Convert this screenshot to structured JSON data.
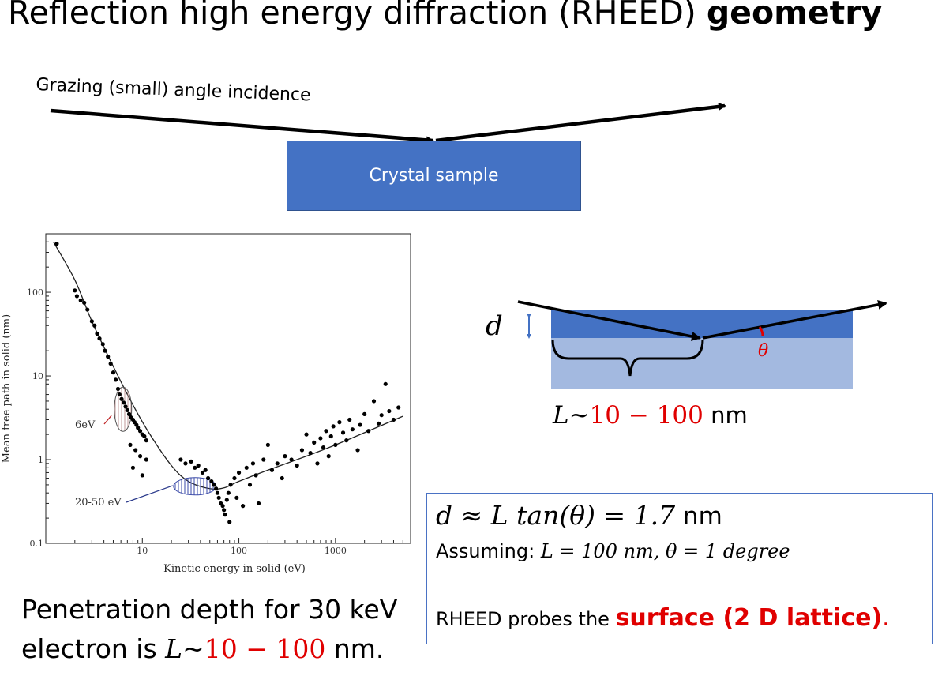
{
  "title": {
    "main": "Reflection high energy diffraction (RHEED) ",
    "emph": "geometry"
  },
  "incidence_label": "Grazing (small) angle incidence",
  "sample_label": "Crystal sample",
  "depth_diagram": {
    "d_symbol": "d",
    "theta_symbol": "θ",
    "L_prefix": "L~",
    "L_range": "10 − 100",
    "L_unit": " nm"
  },
  "equation_box": {
    "line1_math": "d ≈ L tan(θ) = 1.7",
    "line1_unit": " nm",
    "line2_prefix": "Assuming: ",
    "line2_math": "L = 100 nm, θ = 1 degree",
    "line3_prefix": "RHEED probes the ",
    "line3_highlight": "surface (2 D lattice)",
    "line3_suffix": "."
  },
  "penetration": {
    "line1": "Penetration depth for 30 keV",
    "line2_prefix": "electron is ",
    "line2_L": "L~",
    "line2_range": "10 − 100",
    "line2_suffix": " nm."
  },
  "chart_data": {
    "type": "scatter",
    "xlabel": "Kinetic energy in solid (eV)",
    "ylabel": "Mean free path in solid (nm)",
    "x_scale": "log",
    "y_scale": "log",
    "xlim": [
      1,
      6000
    ],
    "ylim": [
      0.1,
      500
    ],
    "x_ticks": [
      {
        "value": 10,
        "label": "10"
      },
      {
        "value": 100,
        "label": "100"
      },
      {
        "value": 1000,
        "label": "1000"
      }
    ],
    "y_ticks": [
      {
        "value": 0.1,
        "label": "0.1"
      },
      {
        "value": 1,
        "label": "1"
      },
      {
        "value": 10,
        "label": "10"
      },
      {
        "value": 100,
        "label": "100"
      }
    ],
    "annotations": [
      {
        "text": "6eV",
        "color": "#c0282a",
        "x": 6,
        "y": 4
      },
      {
        "text": "20-50 eV",
        "color": "#2b3a8c",
        "x": 35,
        "y": 0.5
      }
    ],
    "curve": [
      {
        "x": 1.2,
        "y": 400
      },
      {
        "x": 2,
        "y": 140
      },
      {
        "x": 3,
        "y": 45
      },
      {
        "x": 5,
        "y": 13
      },
      {
        "x": 8,
        "y": 4.5
      },
      {
        "x": 12,
        "y": 2
      },
      {
        "x": 20,
        "y": 0.85
      },
      {
        "x": 30,
        "y": 0.55
      },
      {
        "x": 50,
        "y": 0.45
      },
      {
        "x": 70,
        "y": 0.46
      },
      {
        "x": 100,
        "y": 0.55
      },
      {
        "x": 200,
        "y": 0.75
      },
      {
        "x": 500,
        "y": 1.1
      },
      {
        "x": 1000,
        "y": 1.5
      },
      {
        "x": 2000,
        "y": 2.1
      },
      {
        "x": 5000,
        "y": 3.3
      }
    ],
    "points": [
      {
        "x": 1.3,
        "y": 380
      },
      {
        "x": 2.0,
        "y": 105
      },
      {
        "x": 2.1,
        "y": 90
      },
      {
        "x": 2.3,
        "y": 80
      },
      {
        "x": 2.5,
        "y": 75
      },
      {
        "x": 2.7,
        "y": 62
      },
      {
        "x": 3.0,
        "y": 45
      },
      {
        "x": 3.2,
        "y": 40
      },
      {
        "x": 3.4,
        "y": 32
      },
      {
        "x": 3.6,
        "y": 28
      },
      {
        "x": 3.9,
        "y": 24
      },
      {
        "x": 4.1,
        "y": 20
      },
      {
        "x": 4.4,
        "y": 17
      },
      {
        "x": 4.7,
        "y": 14
      },
      {
        "x": 5.0,
        "y": 11
      },
      {
        "x": 5.3,
        "y": 9
      },
      {
        "x": 5.6,
        "y": 7
      },
      {
        "x": 5.8,
        "y": 6
      },
      {
        "x": 6.1,
        "y": 5.3
      },
      {
        "x": 6.4,
        "y": 4.8
      },
      {
        "x": 6.7,
        "y": 4.3
      },
      {
        "x": 7.0,
        "y": 3.9
      },
      {
        "x": 7.3,
        "y": 3.5
      },
      {
        "x": 7.6,
        "y": 3.2
      },
      {
        "x": 8.0,
        "y": 3.0
      },
      {
        "x": 8.3,
        "y": 2.8
      },
      {
        "x": 8.7,
        "y": 2.6
      },
      {
        "x": 9.0,
        "y": 2.4
      },
      {
        "x": 9.5,
        "y": 2.2
      },
      {
        "x": 10,
        "y": 2.0
      },
      {
        "x": 10.5,
        "y": 1.9
      },
      {
        "x": 11,
        "y": 1.7
      },
      {
        "x": 7.5,
        "y": 1.5
      },
      {
        "x": 8.5,
        "y": 1.3
      },
      {
        "x": 9.5,
        "y": 1.1
      },
      {
        "x": 11,
        "y": 1.0
      },
      {
        "x": 8.0,
        "y": 0.8
      },
      {
        "x": 10,
        "y": 0.65
      },
      {
        "x": 25,
        "y": 1.0
      },
      {
        "x": 28,
        "y": 0.9
      },
      {
        "x": 32,
        "y": 0.95
      },
      {
        "x": 35,
        "y": 0.8
      },
      {
        "x": 38,
        "y": 0.85
      },
      {
        "x": 42,
        "y": 0.7
      },
      {
        "x": 45,
        "y": 0.75
      },
      {
        "x": 48,
        "y": 0.6
      },
      {
        "x": 52,
        "y": 0.55
      },
      {
        "x": 55,
        "y": 0.5
      },
      {
        "x": 58,
        "y": 0.45
      },
      {
        "x": 60,
        "y": 0.4
      },
      {
        "x": 62,
        "y": 0.35
      },
      {
        "x": 65,
        "y": 0.3
      },
      {
        "x": 68,
        "y": 0.28
      },
      {
        "x": 70,
        "y": 0.25
      },
      {
        "x": 72,
        "y": 0.22
      },
      {
        "x": 75,
        "y": 0.33
      },
      {
        "x": 78,
        "y": 0.4
      },
      {
        "x": 80,
        "y": 0.18
      },
      {
        "x": 82,
        "y": 0.5
      },
      {
        "x": 90,
        "y": 0.6
      },
      {
        "x": 95,
        "y": 0.35
      },
      {
        "x": 100,
        "y": 0.7
      },
      {
        "x": 110,
        "y": 0.28
      },
      {
        "x": 120,
        "y": 0.8
      },
      {
        "x": 130,
        "y": 0.5
      },
      {
        "x": 140,
        "y": 0.9
      },
      {
        "x": 150,
        "y": 0.65
      },
      {
        "x": 160,
        "y": 0.3
      },
      {
        "x": 180,
        "y": 1.0
      },
      {
        "x": 200,
        "y": 1.5
      },
      {
        "x": 220,
        "y": 0.75
      },
      {
        "x": 250,
        "y": 0.9
      },
      {
        "x": 280,
        "y": 0.6
      },
      {
        "x": 300,
        "y": 1.1
      },
      {
        "x": 350,
        "y": 1.0
      },
      {
        "x": 400,
        "y": 0.85
      },
      {
        "x": 450,
        "y": 1.3
      },
      {
        "x": 500,
        "y": 2.0
      },
      {
        "x": 550,
        "y": 1.2
      },
      {
        "x": 600,
        "y": 1.6
      },
      {
        "x": 650,
        "y": 0.9
      },
      {
        "x": 700,
        "y": 1.8
      },
      {
        "x": 750,
        "y": 1.4
      },
      {
        "x": 800,
        "y": 2.2
      },
      {
        "x": 850,
        "y": 1.1
      },
      {
        "x": 900,
        "y": 1.9
      },
      {
        "x": 950,
        "y": 2.5
      },
      {
        "x": 1000,
        "y": 1.5
      },
      {
        "x": 1100,
        "y": 2.8
      },
      {
        "x": 1200,
        "y": 2.1
      },
      {
        "x": 1300,
        "y": 1.7
      },
      {
        "x": 1400,
        "y": 3.0
      },
      {
        "x": 1500,
        "y": 2.3
      },
      {
        "x": 1700,
        "y": 1.3
      },
      {
        "x": 1800,
        "y": 2.6
      },
      {
        "x": 2000,
        "y": 3.5
      },
      {
        "x": 2200,
        "y": 2.2
      },
      {
        "x": 2500,
        "y": 5.0
      },
      {
        "x": 2800,
        "y": 2.7
      },
      {
        "x": 3000,
        "y": 3.4
      },
      {
        "x": 3300,
        "y": 8.0
      },
      {
        "x": 3600,
        "y": 3.8
      },
      {
        "x": 4000,
        "y": 3.0
      },
      {
        "x": 4500,
        "y": 4.2
      }
    ]
  }
}
